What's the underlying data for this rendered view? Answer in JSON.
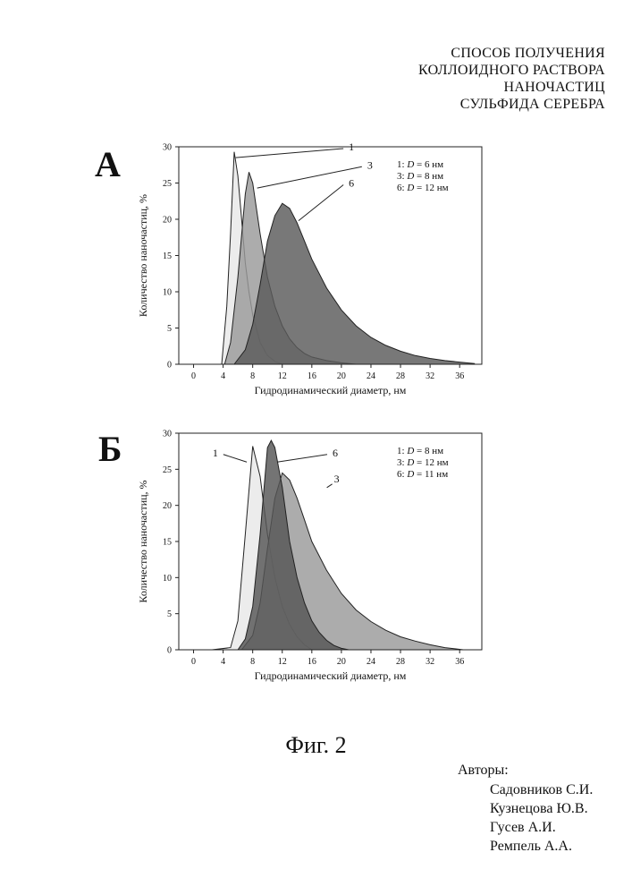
{
  "title_lines": [
    "СПОСОБ ПОЛУЧЕНИЯ",
    "КОЛЛОИДНОГО РАСТВОРА",
    "НАНОЧАСТИЦ",
    "СУЛЬФИДА СЕРЕБРА"
  ],
  "figure_caption": "Фиг. 2",
  "authors_label": "Авторы:",
  "authors": [
    "Садовников С.И.",
    "Кузнецова Ю.В.",
    "Гусев А.И.",
    "Ремпель А.А."
  ],
  "chart_data": [
    {
      "panel": "А",
      "type": "area",
      "xlabel": "Гидродинамический диаметр, нм",
      "ylabel": "Количество наночастиц, %",
      "xlim": [
        -2,
        39
      ],
      "ylim": [
        0,
        30
      ],
      "xticks": [
        0,
        4,
        8,
        12,
        16,
        20,
        24,
        28,
        32,
        36
      ],
      "yticks": [
        0,
        5,
        10,
        15,
        20,
        25,
        30
      ],
      "legend_position": "top-right",
      "legend": [
        {
          "id": "1",
          "prefix": "1: ",
          "symbol": "D",
          "eq": " =  6  ",
          "unit": "нм"
        },
        {
          "id": "3",
          "prefix": "3: ",
          "symbol": "D",
          "eq": " =  8  ",
          "unit": "нм"
        },
        {
          "id": "6",
          "prefix": "6: ",
          "symbol": "D",
          "eq": " = 12 ",
          "unit": "нм"
        }
      ],
      "series": [
        {
          "name": "1",
          "fill": "#e8e8e8",
          "x": [
            3.8,
            4.5,
            5.0,
            5.5,
            6.0,
            6.5,
            7.0,
            7.5,
            8.0,
            9.0,
            10.0,
            11.0,
            12.0
          ],
          "y": [
            0,
            8,
            18,
            29.3,
            26,
            20,
            14,
            10,
            6.8,
            3,
            1.2,
            0.4,
            0
          ]
        },
        {
          "name": "3",
          "fill": "#9a9a9a",
          "x": [
            4.2,
            5.0,
            6.0,
            7.0,
            7.5,
            8.0,
            9.0,
            10.0,
            11.0,
            12.0,
            13.0,
            14.0,
            15.0,
            16.0,
            18.0,
            20.0,
            22.0
          ],
          "y": [
            0,
            3,
            12,
            23.5,
            26.5,
            25,
            18,
            12,
            8,
            5.3,
            3.5,
            2.3,
            1.5,
            1,
            0.5,
            0.2,
            0
          ]
        },
        {
          "name": "6",
          "fill": "#5a5a5a",
          "x": [
            5.5,
            7.0,
            8.0,
            9.0,
            10.0,
            11.0,
            12.0,
            13.0,
            14.0,
            15.0,
            16.0,
            18.0,
            20.0,
            22.0,
            24.0,
            26.0,
            28.0,
            30.0,
            32.0,
            34.0,
            36.0,
            38.0
          ],
          "y": [
            0,
            2,
            5.5,
            11,
            17,
            20.5,
            22.2,
            21.5,
            19.5,
            17,
            14.5,
            10.5,
            7.5,
            5.3,
            3.7,
            2.6,
            1.8,
            1.2,
            0.8,
            0.5,
            0.3,
            0.1
          ]
        }
      ],
      "annotations": [
        {
          "label": "1",
          "target_x": 5.7,
          "target_y": 28.5,
          "text_x": 21,
          "text_y": 30
        },
        {
          "label": "3",
          "target_x": 8.6,
          "target_y": 24.3,
          "text_x": 23.5,
          "text_y": 27.5
        },
        {
          "label": "6",
          "target_x": 14.2,
          "target_y": 19.8,
          "text_x": 21,
          "text_y": 25
        }
      ]
    },
    {
      "panel": "Б",
      "type": "area",
      "xlabel": "Гидродинамический диаметр, нм",
      "ylabel": "Количество наночастиц, %",
      "xlim": [
        -2,
        39
      ],
      "ylim": [
        0,
        30
      ],
      "xticks": [
        0,
        4,
        8,
        12,
        16,
        20,
        24,
        28,
        32,
        36
      ],
      "yticks": [
        0,
        5,
        10,
        15,
        20,
        25,
        30
      ],
      "legend_position": "top-right",
      "legend": [
        {
          "id": "1",
          "prefix": "1: ",
          "symbol": "D",
          "eq": " =  8  ",
          "unit": "нм"
        },
        {
          "id": "3",
          "prefix": "3: ",
          "symbol": "D",
          "eq": " = 12 ",
          "unit": "нм"
        },
        {
          "id": "6",
          "prefix": "6: ",
          "symbol": "D",
          "eq": " = 11 ",
          "unit": "нм"
        }
      ],
      "series": [
        {
          "name": "1",
          "fill": "#e8e8e8",
          "x": [
            2.5,
            5.0,
            6.0,
            7.0,
            8.0,
            9.0,
            10.0,
            11.0,
            12.0,
            13.0,
            14.0,
            15.0,
            16.0
          ],
          "y": [
            0,
            0.3,
            4,
            16,
            28.2,
            24,
            16,
            10,
            6,
            3.5,
            1.8,
            0.7,
            0
          ]
        },
        {
          "name": "3",
          "fill": "#9a9a9a",
          "x": [
            6.5,
            8.0,
            9.0,
            10.0,
            11.0,
            12.0,
            13.0,
            14.0,
            15.0,
            16.0,
            18.0,
            20.0,
            22.0,
            24.0,
            26.0,
            28.0,
            30.0,
            32.0,
            34.0,
            36.5
          ],
          "y": [
            0,
            2,
            6.5,
            14,
            21,
            24.5,
            23.5,
            21,
            18,
            15,
            11,
            7.8,
            5.5,
            3.9,
            2.7,
            1.8,
            1.2,
            0.7,
            0.3,
            0
          ]
        },
        {
          "name": "6",
          "fill": "#555555",
          "x": [
            6.0,
            7.0,
            8.0,
            9.0,
            10.0,
            10.5,
            11.0,
            12.0,
            13.0,
            14.0,
            15.0,
            16.0,
            17.0,
            18.0,
            19.0,
            20.0,
            21.0
          ],
          "y": [
            0,
            1.5,
            6,
            16,
            28,
            29,
            28,
            22.5,
            15,
            10,
            6.5,
            4,
            2.4,
            1.3,
            0.6,
            0.2,
            0
          ]
        }
      ],
      "annotations": [
        {
          "label": "1",
          "target_x": 7.2,
          "target_y": 26.0,
          "text_x": 3.3,
          "text_y": 27.3
        },
        {
          "label": "6",
          "target_x": 11.3,
          "target_y": 26.0,
          "text_x": 18.8,
          "text_y": 27.3
        },
        {
          "label": "3",
          "target_x": null,
          "target_y": null,
          "text_x": 19.0,
          "text_y": 23.7
        }
      ]
    }
  ]
}
